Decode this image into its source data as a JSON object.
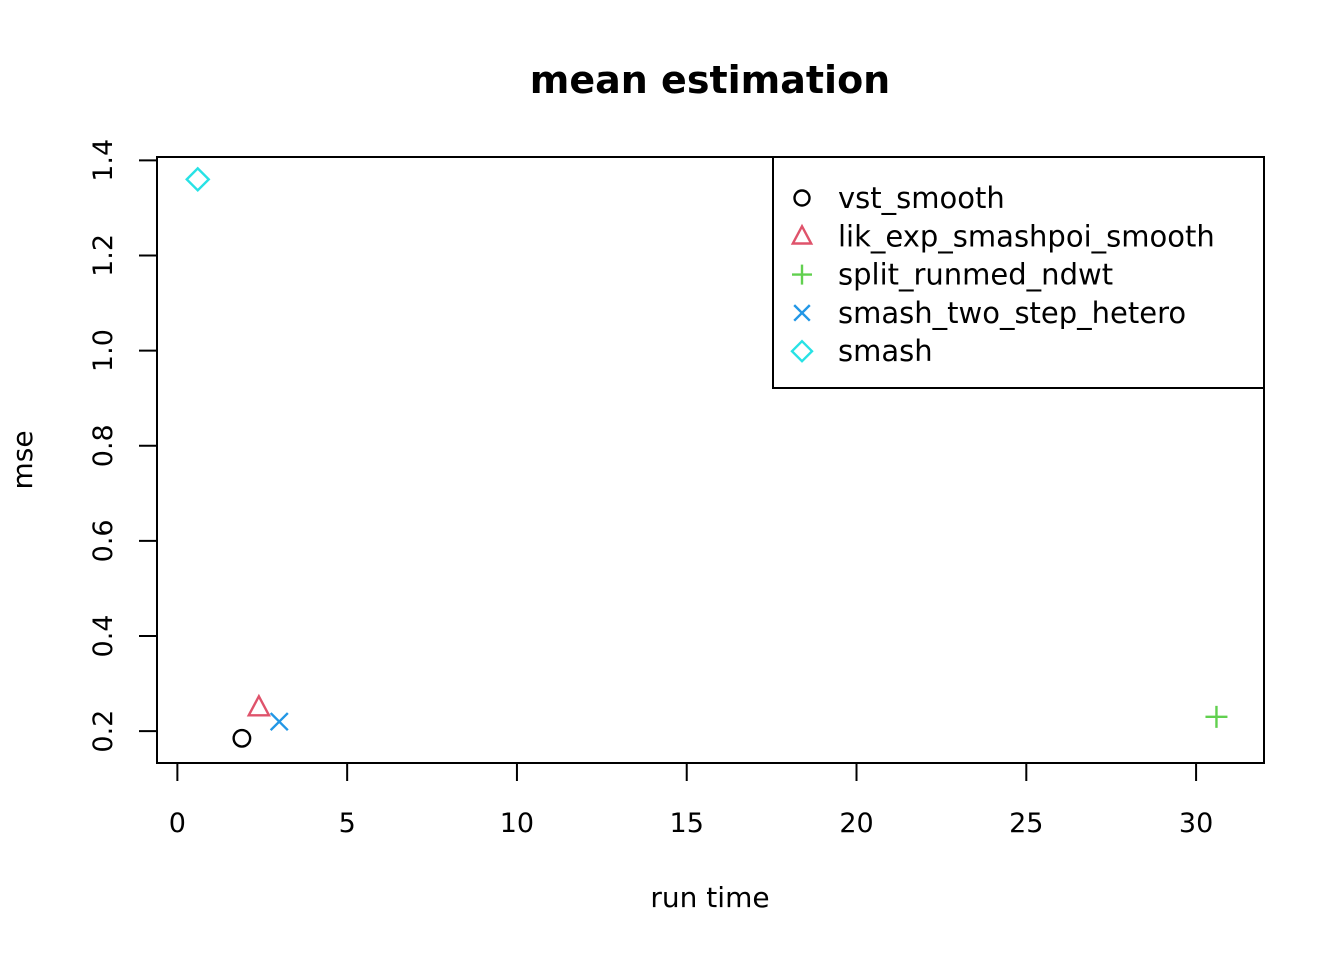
{
  "chart_data": {
    "type": "scatter",
    "title": "mean estimation",
    "xlabel": "run time",
    "ylabel": "mse",
    "xlim": [
      -0.6,
      32
    ],
    "ylim": [
      0.133,
      1.407
    ],
    "xticks": {
      "values": [
        0,
        5,
        10,
        15,
        20,
        25,
        30
      ],
      "labels": [
        "0",
        "5",
        "10",
        "15",
        "20",
        "25",
        "30"
      ]
    },
    "yticks": {
      "values": [
        0.2,
        0.4,
        0.6,
        0.8,
        1.0,
        1.2,
        1.4
      ],
      "labels": [
        "0.2",
        "0.4",
        "0.6",
        "0.8",
        "1.0",
        "1.2",
        "1.4"
      ]
    },
    "grid": false,
    "legend_position": "top-right",
    "axis_color": "#000000",
    "background_color": "#ffffff",
    "series": [
      {
        "name": "vst_smooth",
        "marker": "circle",
        "color": "#000000",
        "points": [
          {
            "x": 1.9,
            "y": 0.185
          }
        ]
      },
      {
        "name": "lik_exp_smashpoi_smooth",
        "marker": "triangle",
        "color": "#DF536B",
        "points": [
          {
            "x": 2.4,
            "y": 0.25
          }
        ]
      },
      {
        "name": "split_runmed_ndwt",
        "marker": "plus",
        "color": "#61D04F",
        "points": [
          {
            "x": 30.6,
            "y": 0.23
          }
        ]
      },
      {
        "name": "smash_two_step_hetero",
        "marker": "x",
        "color": "#2297E6",
        "points": [
          {
            "x": 3.0,
            "y": 0.22
          }
        ]
      },
      {
        "name": "smash",
        "marker": "diamond",
        "color": "#28E2E5",
        "points": [
          {
            "x": 0.6,
            "y": 1.36
          }
        ]
      }
    ]
  }
}
